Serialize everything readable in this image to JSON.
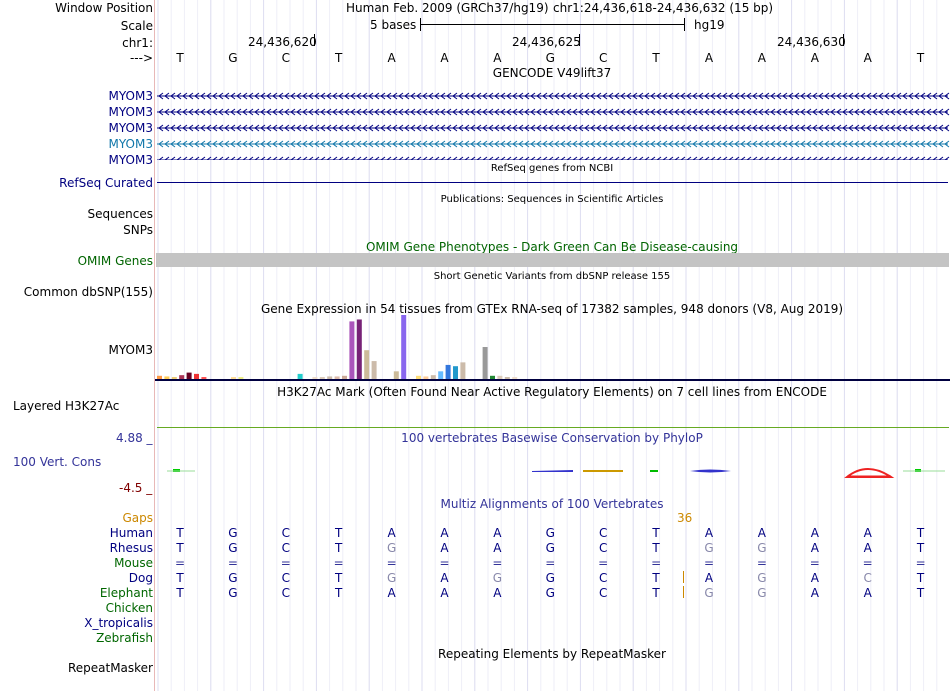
{
  "colors": {
    "navy": "#000080",
    "teal": "#1177aa",
    "omim_green": "#006400",
    "gaps_orange": "#cc8800",
    "phylop_blue": "#333399",
    "phylop_neg": "#800000",
    "species_green": "#006600"
  },
  "position": {
    "window_label": "Window Position",
    "assembly_text": "Human Feb. 2009 (GRCh37/hg19)",
    "coords_text": "chr1:24,436,618-24,436,632 (15 bp)",
    "scale_label": "Scale",
    "scale_value": "5 bases",
    "db": "hg19",
    "chrom_label": "chr1:",
    "ticks": [
      "24,436,620",
      "24,436,625",
      "24,436,630"
    ],
    "strand_label": "--->",
    "bases": [
      "T",
      "G",
      "C",
      "T",
      "A",
      "A",
      "A",
      "G",
      "C",
      "T",
      "A",
      "A",
      "A",
      "A",
      "T"
    ]
  },
  "gencode": {
    "title": "GENCODE V49lift37",
    "tracks": [
      "MYOM3",
      "MYOM3",
      "MYOM3",
      "MYOM3",
      "MYOM3"
    ]
  },
  "refseq": {
    "title": "RefSeq genes from NCBI",
    "label": "RefSeq Curated"
  },
  "pubs": {
    "title": "Publications: Sequences in Scientific Articles",
    "seq_label": "Sequences",
    "snp_label": "SNPs"
  },
  "omim": {
    "title": "OMIM Gene Phenotypes - Dark Green Can Be Disease-causing",
    "label": "OMIM Genes"
  },
  "dbsnp": {
    "title": "Short Genetic Variants from dbSNP release 155",
    "label": "Common dbSNP(155)"
  },
  "gtex": {
    "title": "Gene Expression in 54 tissues from GTEx RNA-seq of 17382 samples, 948 donors (V8, Aug 2019)",
    "label": "MYOM3",
    "bars": [
      {
        "v": 0.05,
        "c": "#ff9944"
      },
      {
        "v": 0.04,
        "c": "#ffcc55"
      },
      {
        "v": 0.03,
        "c": "#eecc77"
      },
      {
        "v": 0.06,
        "c": "#aa3355"
      },
      {
        "v": 0.1,
        "c": "#660022"
      },
      {
        "v": 0.08,
        "c": "#ee3333"
      },
      {
        "v": 0.03,
        "c": "#ff5555"
      },
      {
        "v": 0.0,
        "c": "#ffffff"
      },
      {
        "v": 0.0,
        "c": "#ffffff"
      },
      {
        "v": 0.0,
        "c": "#ffffff"
      },
      {
        "v": 0.03,
        "c": "#ffdd99"
      },
      {
        "v": 0.03,
        "c": "#eeee88"
      },
      {
        "v": 0.0,
        "c": "#ffffff"
      },
      {
        "v": 0.0,
        "c": "#ffffff"
      },
      {
        "v": 0.0,
        "c": "#ffffff"
      },
      {
        "v": 0.0,
        "c": "#ffffff"
      },
      {
        "v": 0.0,
        "c": "#ffffff"
      },
      {
        "v": 0.0,
        "c": "#ffffff"
      },
      {
        "v": 0.0,
        "c": "#ffffff"
      },
      {
        "v": 0.08,
        "c": "#22cccc"
      },
      {
        "v": 0.0,
        "c": "#ffffff"
      },
      {
        "v": 0.03,
        "c": "#eeddcc"
      },
      {
        "v": 0.03,
        "c": "#ddccbb"
      },
      {
        "v": 0.04,
        "c": "#ccbbaa"
      },
      {
        "v": 0.04,
        "c": "#ddbbaa"
      },
      {
        "v": 0.05,
        "c": "#ccaa99"
      },
      {
        "v": 0.9,
        "c": "#aa55bb"
      },
      {
        "v": 0.93,
        "c": "#772277"
      },
      {
        "v": 0.45,
        "c": "#ccbb99"
      },
      {
        "v": 0.28,
        "c": "#ccbbaa"
      },
      {
        "v": 0.0,
        "c": "#ffffff"
      },
      {
        "v": 0.0,
        "c": "#ffffff"
      },
      {
        "v": 0.12,
        "c": "#ccbb99"
      },
      {
        "v": 1.0,
        "c": "#8866ee"
      },
      {
        "v": 0.0,
        "c": "#ffffff"
      },
      {
        "v": 0.05,
        "c": "#ffdd77"
      },
      {
        "v": 0.04,
        "c": "#ffcc99"
      },
      {
        "v": 0.06,
        "c": "#ccbbaa"
      },
      {
        "v": 0.12,
        "c": "#66bbff"
      },
      {
        "v": 0.22,
        "c": "#3377dd"
      },
      {
        "v": 0.2,
        "c": "#2299cc"
      },
      {
        "v": 0.26,
        "c": "#ccbbaa"
      },
      {
        "v": 0.0,
        "c": "#ffffff"
      },
      {
        "v": 0.0,
        "c": "#ffffff"
      },
      {
        "v": 0.5,
        "c": "#999999"
      },
      {
        "v": 0.05,
        "c": "#228833"
      },
      {
        "v": 0.05,
        "c": "#ddccbb"
      },
      {
        "v": 0.03,
        "c": "#ccbbaa"
      },
      {
        "v": 0.03,
        "c": "#eeddcc"
      }
    ]
  },
  "h3k27ac": {
    "title": "H3K27Ac Mark (Often Found Near Active Regulatory Elements) on 7 cell lines from ENCODE",
    "label": "Layered H3K27Ac"
  },
  "phylop": {
    "title": "100 vertebrates Basewise Conservation by PhyloP",
    "label": "100 Vert. Cons",
    "ymax": "4.88 _",
    "ymin": "-4.5 _"
  },
  "multiz": {
    "title": "Multiz Alignments of 100 Vertebrates",
    "gaps_label": "Gaps",
    "gaps_value": "36",
    "species": [
      {
        "name": "Human",
        "seq": [
          "T",
          "G",
          "C",
          "T",
          "A",
          "A",
          "A",
          "G",
          "C",
          "T",
          "A",
          "A",
          "A",
          "A",
          "T"
        ]
      },
      {
        "name": "Rhesus",
        "seq": [
          "T",
          "G",
          "C",
          "T",
          "G",
          "A",
          "A",
          "G",
          "C",
          "T",
          "G",
          "G",
          "A",
          "A",
          "T"
        ]
      },
      {
        "name": "Mouse",
        "seq": [
          "=",
          "=",
          "=",
          "=",
          "=",
          "=",
          "=",
          "=",
          "=",
          "=",
          "=",
          "=",
          "=",
          "=",
          "="
        ]
      },
      {
        "name": "Dog",
        "seq": [
          "T",
          "G",
          "C",
          "T",
          "G",
          "A",
          "G",
          "G",
          "C",
          "T",
          "A",
          "G",
          "A",
          "C",
          "T"
        ]
      },
      {
        "name": "Elephant",
        "seq": [
          "T",
          "G",
          "C",
          "T",
          "A",
          "A",
          "A",
          "G",
          "C",
          "T",
          "G",
          "G",
          "A",
          "A",
          "T"
        ]
      },
      {
        "name": "Chicken",
        "seq": []
      },
      {
        "name": "X_tropicalis",
        "seq": []
      },
      {
        "name": "Zebrafish",
        "seq": []
      }
    ]
  },
  "repeatmasker": {
    "title": "Repeating Elements by RepeatMasker",
    "label": "RepeatMasker"
  }
}
